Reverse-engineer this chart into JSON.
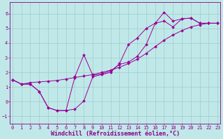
{
  "background_color": "#c0e8e8",
  "grid_color": "#a0cccc",
  "line_color": "#990099",
  "xlabel": "Windchill (Refroidissement éolien,°C)",
  "ylim": [
    -1.5,
    6.8
  ],
  "xlim": [
    -0.3,
    23.3
  ],
  "yticks": [
    -1,
    0,
    1,
    2,
    3,
    4,
    5,
    6
  ],
  "xticks": [
    0,
    1,
    2,
    3,
    4,
    5,
    6,
    7,
    8,
    9,
    10,
    11,
    12,
    13,
    14,
    15,
    16,
    17,
    18,
    19,
    20,
    21,
    22,
    23
  ],
  "series1_x": [
    0,
    1,
    2,
    3,
    4,
    5,
    6,
    7,
    8,
    9,
    10,
    11,
    12,
    13,
    14,
    15,
    16,
    17,
    18,
    19,
    20,
    21,
    22,
    23
  ],
  "series1_y": [
    1.5,
    1.2,
    1.2,
    0.7,
    -0.4,
    -0.6,
    -0.6,
    -0.5,
    0.05,
    1.7,
    1.85,
    2.0,
    2.6,
    3.9,
    4.35,
    5.0,
    5.35,
    6.1,
    5.5,
    5.65,
    5.7,
    5.35,
    5.35,
    5.35
  ],
  "series2_x": [
    0,
    1,
    2,
    3,
    4,
    5,
    6,
    7,
    8,
    9,
    10,
    11,
    12,
    13,
    14,
    15,
    16,
    17,
    18,
    19,
    20,
    21,
    22,
    23
  ],
  "series2_y": [
    1.5,
    1.2,
    1.2,
    0.7,
    -0.4,
    -0.6,
    -0.6,
    1.7,
    3.2,
    1.8,
    1.9,
    2.1,
    2.55,
    2.7,
    3.1,
    3.9,
    5.35,
    5.5,
    5.1,
    5.65,
    5.7,
    5.35,
    5.35,
    5.35
  ],
  "series3_x": [
    0,
    1,
    2,
    3,
    4,
    5,
    6,
    7,
    8,
    9,
    10,
    11,
    12,
    13,
    14,
    15,
    16,
    17,
    18,
    19,
    20,
    21,
    22,
    23
  ],
  "series3_y": [
    1.5,
    1.2,
    1.3,
    1.35,
    1.4,
    1.45,
    1.55,
    1.65,
    1.75,
    1.85,
    2.0,
    2.15,
    2.35,
    2.6,
    2.9,
    3.3,
    3.75,
    4.2,
    4.55,
    4.85,
    5.1,
    5.25,
    5.35,
    5.35
  ],
  "font_color": "#880088",
  "tick_fontsize": 5.0,
  "xlabel_fontsize": 6.0
}
